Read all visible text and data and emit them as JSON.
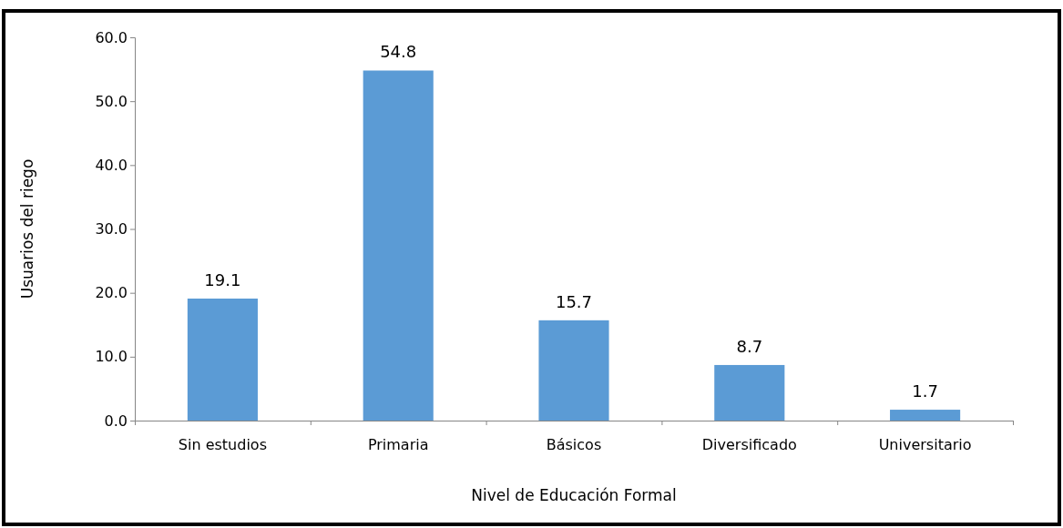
{
  "chart_data": {
    "type": "bar",
    "xlabel": "Nivel de Educación Formal",
    "ylabel": "Usuarios del riego",
    "categories": [
      "Sin estudios",
      "Primaria",
      "Básicos",
      "Diversificado",
      "Universitario"
    ],
    "values": [
      19.1,
      54.8,
      15.7,
      8.7,
      1.7
    ],
    "color": "#5b9bd5",
    "ylim": [
      0,
      60
    ],
    "yticks": [
      {
        "value": 0,
        "label": "0.0"
      },
      {
        "value": 10,
        "label": "10.0"
      },
      {
        "value": 20,
        "label": "20.0"
      },
      {
        "value": 30,
        "label": "30.0"
      },
      {
        "value": 40,
        "label": "40.0"
      },
      {
        "value": 50,
        "label": "50.0"
      },
      {
        "value": 60,
        "label": "60.0"
      }
    ],
    "grid": false,
    "data_labels": true
  }
}
